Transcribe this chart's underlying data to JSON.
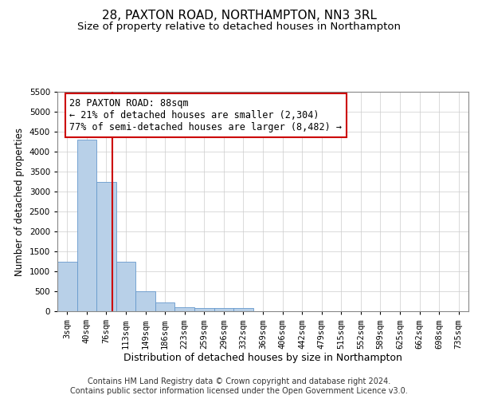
{
  "title1": "28, PAXTON ROAD, NORTHAMPTON, NN3 3RL",
  "title2": "Size of property relative to detached houses in Northampton",
  "xlabel": "Distribution of detached houses by size in Northampton",
  "ylabel": "Number of detached properties",
  "bin_labels": [
    "3sqm",
    "40sqm",
    "76sqm",
    "113sqm",
    "149sqm",
    "186sqm",
    "223sqm",
    "259sqm",
    "296sqm",
    "332sqm",
    "369sqm",
    "406sqm",
    "442sqm",
    "479sqm",
    "515sqm",
    "552sqm",
    "589sqm",
    "625sqm",
    "662sqm",
    "698sqm",
    "735sqm"
  ],
  "bar_values": [
    1250,
    4300,
    3250,
    1250,
    500,
    225,
    100,
    75,
    75,
    75,
    0,
    0,
    0,
    0,
    0,
    0,
    0,
    0,
    0,
    0,
    0
  ],
  "bar_color": "#b8d0e8",
  "bar_edgecolor": "#6699cc",
  "grid_color": "#cccccc",
  "background_color": "#ffffff",
  "annotation_line1": "28 PAXTON ROAD: 88sqm",
  "annotation_line2": "← 21% of detached houses are smaller (2,304)",
  "annotation_line3": "77% of semi-detached houses are larger (8,482) →",
  "annotation_box_color": "#ffffff",
  "annotation_box_edgecolor": "#cc0000",
  "red_line_color": "#cc0000",
  "ylim": [
    0,
    5500
  ],
  "yticks": [
    0,
    500,
    1000,
    1500,
    2000,
    2500,
    3000,
    3500,
    4000,
    4500,
    5000,
    5500
  ],
  "footer_text": "Contains HM Land Registry data © Crown copyright and database right 2024.\nContains public sector information licensed under the Open Government Licence v3.0.",
  "title1_fontsize": 11,
  "title2_fontsize": 9.5,
  "xlabel_fontsize": 9,
  "ylabel_fontsize": 8.5,
  "tick_fontsize": 7.5,
  "annotation_fontsize": 8.5,
  "footer_fontsize": 7
}
